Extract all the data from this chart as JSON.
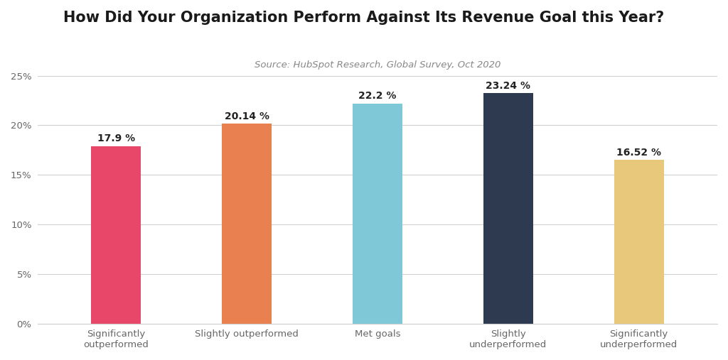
{
  "title": "How Did Your Organization Perform Against Its Revenue Goal this Year?",
  "subtitle": "Source: HubSpot Research, Global Survey, Oct 2020",
  "categories": [
    "Significantly\noutperformed",
    "Slightly outperformed",
    "Met goals",
    "Slightly\nunderperformed",
    "Significantly\nunderperformed"
  ],
  "values": [
    17.9,
    20.14,
    22.2,
    23.24,
    16.52
  ],
  "labels": [
    "17.9 %",
    "20.14 %",
    "22.2 %",
    "23.24 %",
    "16.52 %"
  ],
  "bar_colors": [
    "#E8476A",
    "#E88050",
    "#7EC8D8",
    "#2D3A50",
    "#E8C87A"
  ],
  "ylim": [
    0,
    25
  ],
  "yticks": [
    0,
    5,
    10,
    15,
    20,
    25
  ],
  "ytick_labels": [
    "0%",
    "5%",
    "10%",
    "15%",
    "20%",
    "25%"
  ],
  "background_color": "#ffffff",
  "grid_color": "#d0d0d0",
  "title_fontsize": 15,
  "subtitle_fontsize": 9.5,
  "label_fontsize": 10,
  "tick_fontsize": 9.5,
  "bar_width": 0.38
}
